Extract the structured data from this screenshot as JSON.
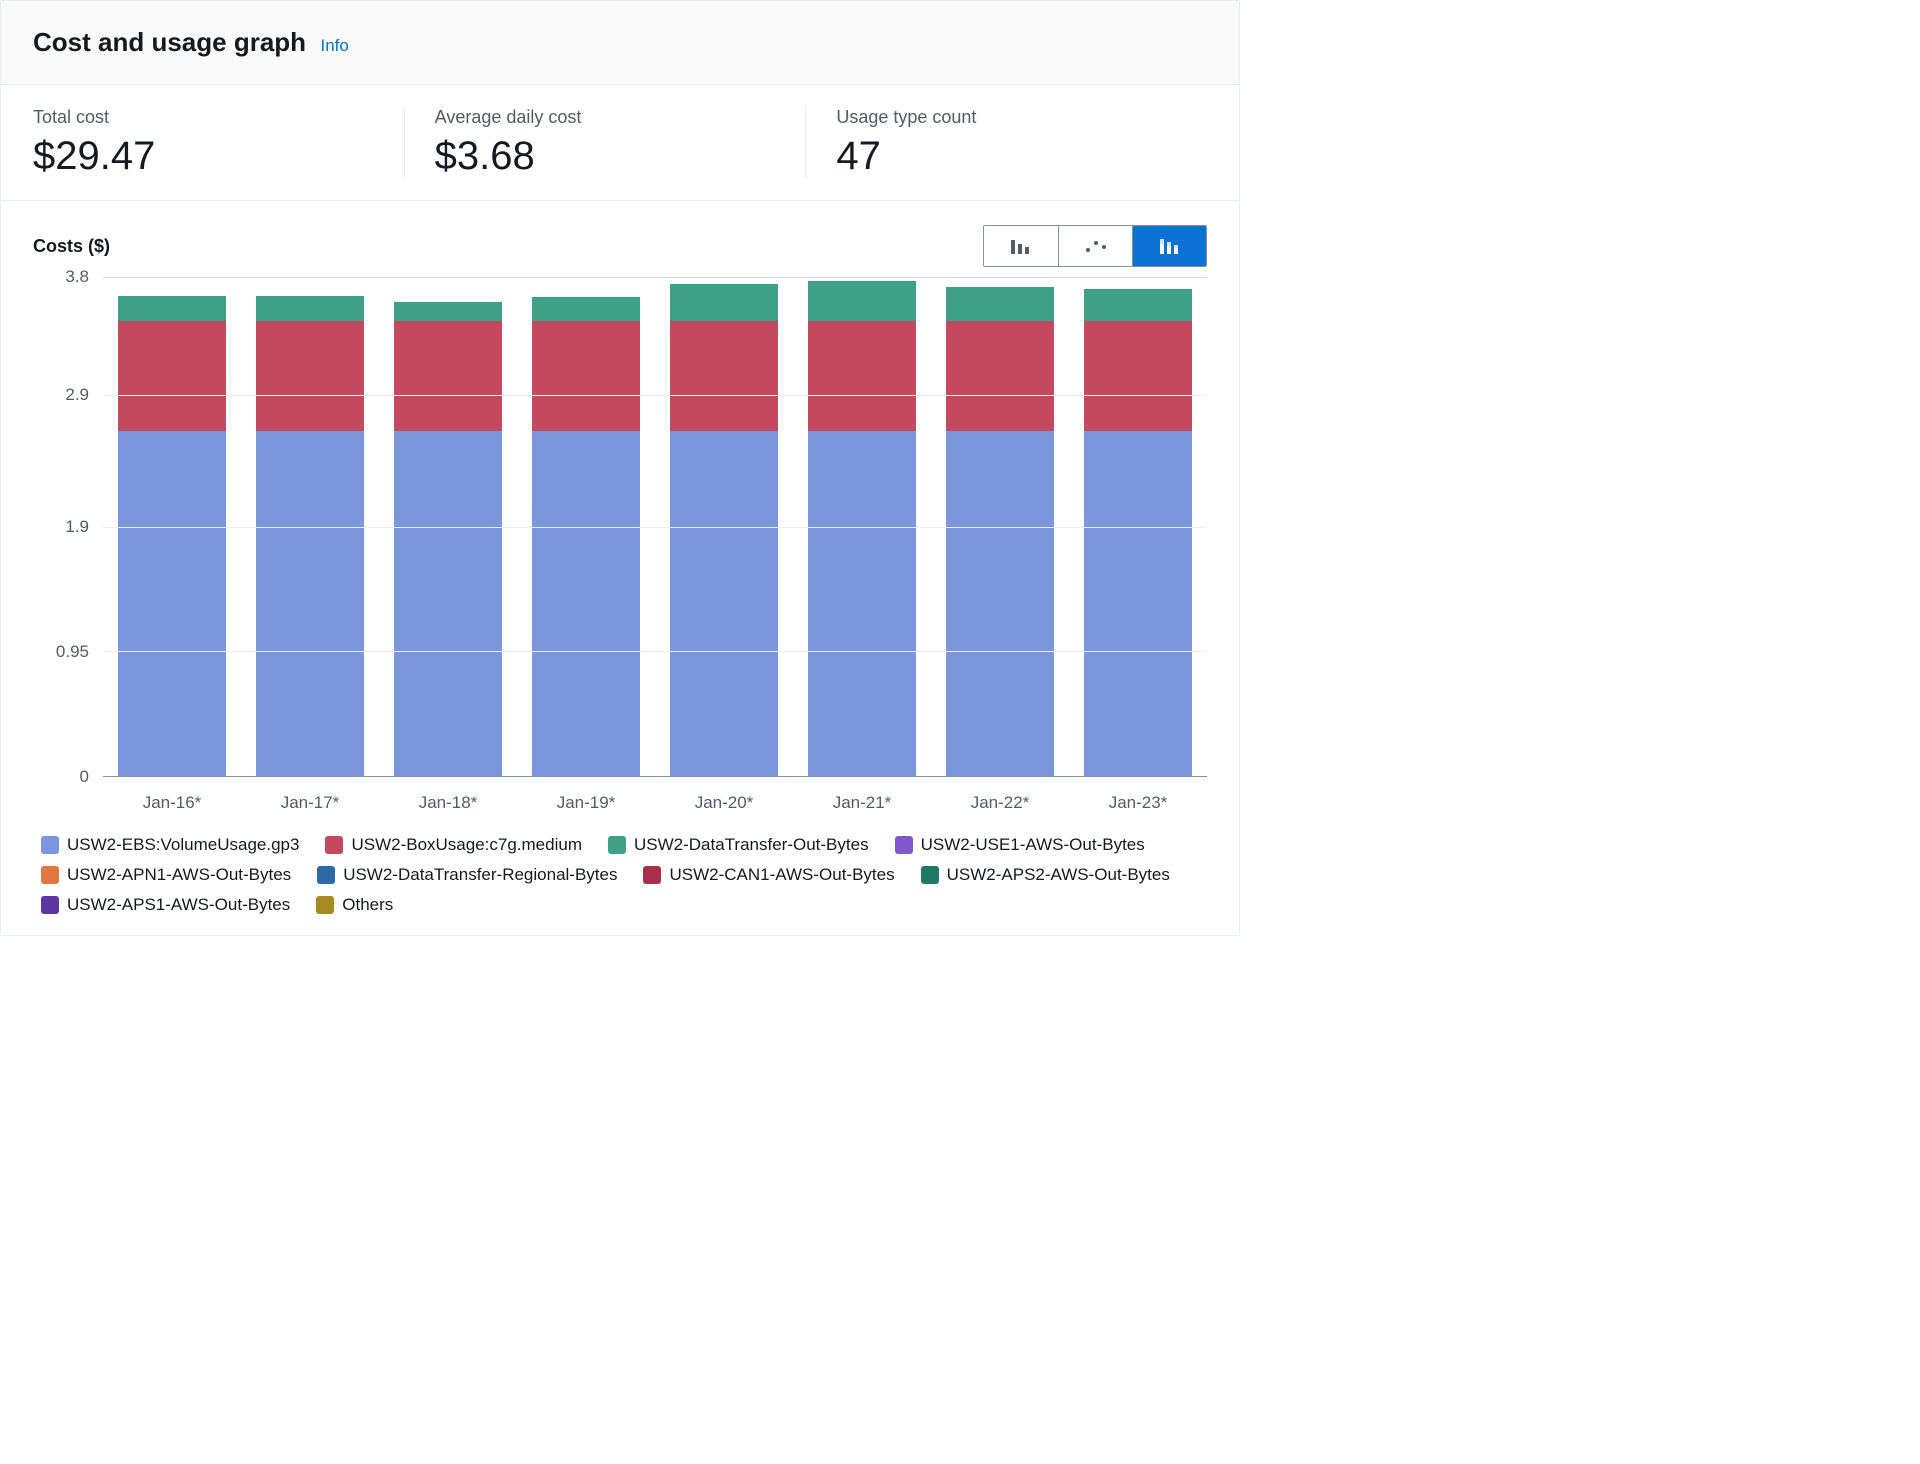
{
  "header": {
    "title": "Cost and usage graph",
    "info_label": "Info"
  },
  "metrics": [
    {
      "label": "Total cost",
      "value": "$29.47"
    },
    {
      "label": "Average daily cost",
      "value": "$3.68"
    },
    {
      "label": "Usage type count",
      "value": "47"
    }
  ],
  "chart": {
    "type": "stacked-bar",
    "y_label": "Costs ($)",
    "y_max": 3.8,
    "y_ticks": [
      {
        "value": 3.8,
        "label": "3.8"
      },
      {
        "value": 2.9,
        "label": "2.9"
      },
      {
        "value": 1.9,
        "label": "1.9"
      },
      {
        "value": 0.95,
        "label": "0.95"
      },
      {
        "value": 0,
        "label": "0"
      }
    ],
    "categories": [
      "Jan-16*",
      "Jan-17*",
      "Jan-18*",
      "Jan-19*",
      "Jan-20*",
      "Jan-21*",
      "Jan-22*",
      "Jan-23*"
    ],
    "series_visible": [
      {
        "key": "ebs",
        "color": "#7a96dd"
      },
      {
        "key": "box",
        "color": "#c34a5e"
      },
      {
        "key": "dto",
        "color": "#3fa088"
      }
    ],
    "values": {
      "ebs": [
        2.62,
        2.62,
        2.62,
        2.62,
        2.62,
        2.62,
        2.62,
        2.62
      ],
      "box": [
        0.84,
        0.84,
        0.84,
        0.84,
        0.84,
        0.84,
        0.84,
        0.84
      ],
      "dto": [
        0.19,
        0.19,
        0.14,
        0.18,
        0.28,
        0.3,
        0.26,
        0.24
      ]
    },
    "background_color": "#ffffff",
    "grid_color": "#eaeded",
    "bar_width_ratio": 0.78,
    "label_fontsize": 17,
    "title_fontsize": 18,
    "view_toggle_active": 2
  },
  "legend": [
    {
      "label": "USW2-EBS:VolumeUsage.gp3",
      "color": "#7a96dd"
    },
    {
      "label": "USW2-BoxUsage:c7g.medium",
      "color": "#c34a5e"
    },
    {
      "label": "USW2-DataTransfer-Out-Bytes",
      "color": "#3fa088"
    },
    {
      "label": "USW2-USE1-AWS-Out-Bytes",
      "color": "#8456ce"
    },
    {
      "label": "USW2-APN1-AWS-Out-Bytes",
      "color": "#e07941"
    },
    {
      "label": "USW2-DataTransfer-Regional-Bytes",
      "color": "#2b6ba1"
    },
    {
      "label": "USW2-CAN1-AWS-Out-Bytes",
      "color": "#a9304a"
    },
    {
      "label": "USW2-APS2-AWS-Out-Bytes",
      "color": "#1f7a65"
    },
    {
      "label": "USW2-APS1-AWS-Out-Bytes",
      "color": "#5d36a4"
    },
    {
      "label": "Others",
      "color": "#a68a1f"
    }
  ]
}
